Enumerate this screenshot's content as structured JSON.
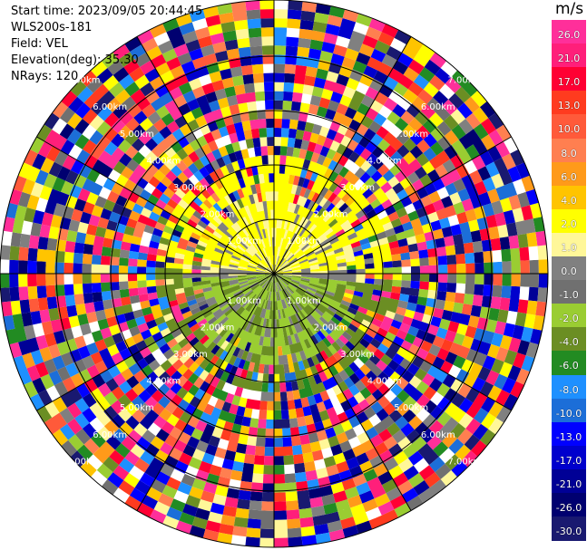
{
  "header": {
    "start_time": "Start time: 2023/09/05 20:44:45",
    "station": "WLS200s-181",
    "field": "Field: VEL",
    "elevation": "Elevation(deg): 35.30",
    "nrays": "NRays: 120"
  },
  "colorbar": {
    "unit": "m/s",
    "levels": [
      "26.0",
      "21.0",
      "17.0",
      "13.0",
      "10.0",
      "8.0",
      "6.0",
      "4.0",
      "2.0",
      "1.0",
      "0.0",
      "-1.0",
      "-2.0",
      "-4.0",
      "-6.0",
      "-8.0",
      "-10.0",
      "-13.0",
      "-17.0",
      "-21.0",
      "-26.0",
      "-30.0"
    ],
    "colors": [
      "#ff2f9a",
      "#ff1f7a",
      "#ff0033",
      "#ff3b1f",
      "#ff5a3a",
      "#ff7f50",
      "#ff9a1a",
      "#ffc400",
      "#ffff00",
      "#fff799",
      "#808080",
      "#707070",
      "#9acd32",
      "#6b8e23",
      "#228b22",
      "#1e90ff",
      "#1c6ed8",
      "#0000ff",
      "#0000cd",
      "#000096",
      "#000070",
      "#191970"
    ]
  },
  "ring_labels": [
    "1.00km",
    "2.00km",
    "3.00km",
    "4.00km",
    "5.00km",
    "6.00km",
    "7.00km"
  ]
}
